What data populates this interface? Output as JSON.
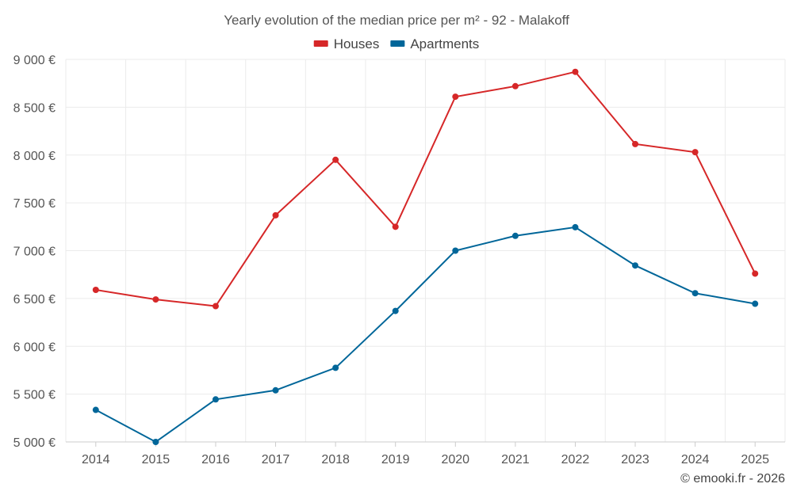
{
  "chart_data": {
    "type": "line",
    "title": "Yearly evolution of the median price per m² - 92 - Malakoff",
    "xlabel": "",
    "ylabel": "",
    "categories": [
      "2014",
      "2015",
      "2016",
      "2017",
      "2018",
      "2019",
      "2020",
      "2021",
      "2022",
      "2023",
      "2024",
      "2025"
    ],
    "ylim": [
      5000,
      9000
    ],
    "yticks": [
      5000,
      5500,
      6000,
      6500,
      7000,
      7500,
      8000,
      8500,
      9000
    ],
    "ytick_labels": [
      "5 000 €",
      "5 500 €",
      "6 000 €",
      "6 500 €",
      "7 000 €",
      "7 500 €",
      "8 000 €",
      "8 500 €",
      "9 000 €"
    ],
    "legend_position": "top-center",
    "grid": true,
    "series": [
      {
        "name": "Houses",
        "color": "#d62728",
        "values": [
          6590,
          6490,
          6420,
          7370,
          7950,
          7250,
          8610,
          8720,
          8870,
          8115,
          8030,
          6760
        ]
      },
      {
        "name": "Apartments",
        "color": "#006699",
        "values": [
          5335,
          5000,
          5445,
          5540,
          5775,
          6370,
          7000,
          7155,
          7245,
          6845,
          6555,
          6445
        ]
      }
    ],
    "credit": "© emooki.fr - 2026"
  }
}
